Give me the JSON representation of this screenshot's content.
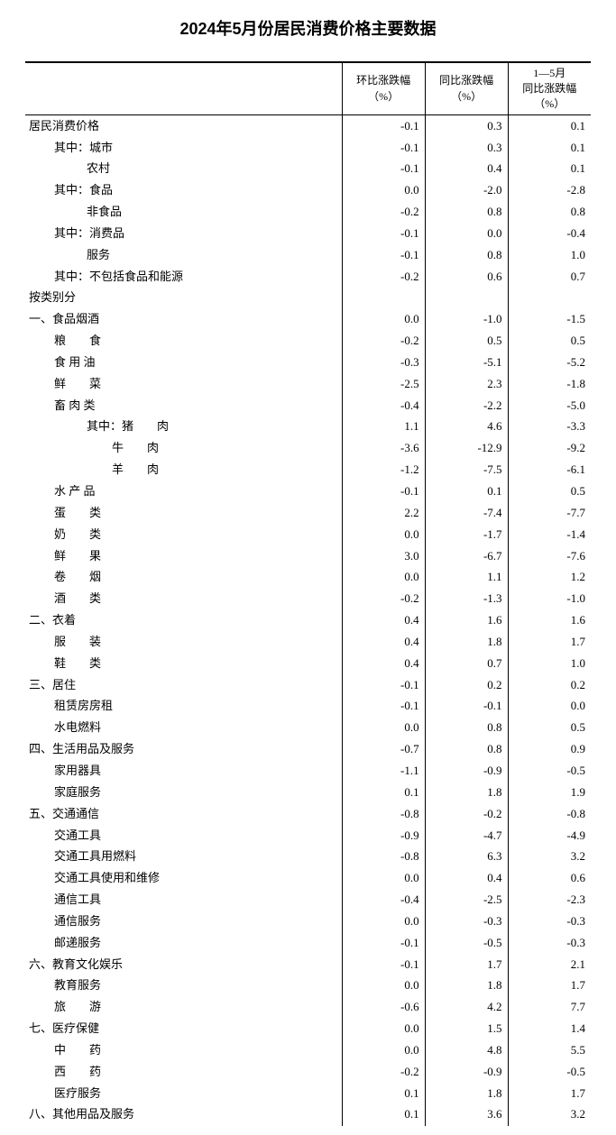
{
  "title": "2024年5月份居民消费价格主要数据",
  "columns": {
    "name": "",
    "c1a": "环比涨跌幅",
    "c1b": "（%）",
    "c2a": "同比涨跌幅",
    "c2b": "（%）",
    "c3a": "1—5月",
    "c3b": "同比涨跌幅",
    "c3c": "（%）"
  },
  "rows": [
    {
      "label": "居民消费价格",
      "indent": 0,
      "v1": "-0.1",
      "v2": "0.3",
      "v3": "0.1"
    },
    {
      "label": "其中：城市",
      "indent": 1,
      "v1": "-0.1",
      "v2": "0.3",
      "v3": "0.1"
    },
    {
      "label": "农村",
      "indent": 2,
      "v1": "-0.1",
      "v2": "0.4",
      "v3": "0.1"
    },
    {
      "label": "其中：食品",
      "indent": 1,
      "v1": "0.0",
      "v2": "-2.0",
      "v3": "-2.8"
    },
    {
      "label": "非食品",
      "indent": 2,
      "v1": "-0.2",
      "v2": "0.8",
      "v3": "0.8"
    },
    {
      "label": "其中：消费品",
      "indent": 1,
      "v1": "-0.1",
      "v2": "0.0",
      "v3": "-0.4"
    },
    {
      "label": "服务",
      "indent": 2,
      "v1": "-0.1",
      "v2": "0.8",
      "v3": "1.0"
    },
    {
      "label": "其中：不包括食品和能源",
      "indent": 1,
      "v1": "-0.2",
      "v2": "0.6",
      "v3": "0.7"
    },
    {
      "label": "按类别分",
      "indent": 0,
      "v1": "",
      "v2": "",
      "v3": ""
    },
    {
      "label": "一、食品烟酒",
      "indent": 0,
      "v1": "0.0",
      "v2": "-1.0",
      "v3": "-1.5"
    },
    {
      "label": "粮　　食",
      "indent": 1,
      "v1": "-0.2",
      "v2": "0.5",
      "v3": "0.5"
    },
    {
      "label": "食 用 油",
      "indent": 1,
      "v1": "-0.3",
      "v2": "-5.1",
      "v3": "-5.2"
    },
    {
      "label": "鲜　　菜",
      "indent": 1,
      "v1": "-2.5",
      "v2": "2.3",
      "v3": "-1.8"
    },
    {
      "label": "畜 肉 类",
      "indent": 1,
      "v1": "-0.4",
      "v2": "-2.2",
      "v3": "-5.0"
    },
    {
      "label": "其中：猪　　肉",
      "indent": 2,
      "v1": "1.1",
      "v2": "4.6",
      "v3": "-3.3"
    },
    {
      "label": "牛　　肉",
      "indent": 3,
      "v1": "-3.6",
      "v2": "-12.9",
      "v3": "-9.2"
    },
    {
      "label": "羊　　肉",
      "indent": 3,
      "v1": "-1.2",
      "v2": "-7.5",
      "v3": "-6.1"
    },
    {
      "label": "水 产 品",
      "indent": 1,
      "v1": "-0.1",
      "v2": "0.1",
      "v3": "0.5"
    },
    {
      "label": "蛋　　类",
      "indent": 1,
      "v1": "2.2",
      "v2": "-7.4",
      "v3": "-7.7"
    },
    {
      "label": "奶　　类",
      "indent": 1,
      "v1": "0.0",
      "v2": "-1.7",
      "v3": "-1.4"
    },
    {
      "label": "鲜　　果",
      "indent": 1,
      "v1": "3.0",
      "v2": "-6.7",
      "v3": "-7.6"
    },
    {
      "label": "卷　　烟",
      "indent": 1,
      "v1": "0.0",
      "v2": "1.1",
      "v3": "1.2"
    },
    {
      "label": "酒　　类",
      "indent": 1,
      "v1": "-0.2",
      "v2": "-1.3",
      "v3": "-1.0"
    },
    {
      "label": "二、衣着",
      "indent": 0,
      "v1": "0.4",
      "v2": "1.6",
      "v3": "1.6"
    },
    {
      "label": "服　　装",
      "indent": 1,
      "v1": "0.4",
      "v2": "1.8",
      "v3": "1.7"
    },
    {
      "label": "鞋　　类",
      "indent": 1,
      "v1": "0.4",
      "v2": "0.7",
      "v3": "1.0"
    },
    {
      "label": "三、居住",
      "indent": 0,
      "v1": "-0.1",
      "v2": "0.2",
      "v3": "0.2"
    },
    {
      "label": "租赁房房租",
      "indent": 1,
      "v1": "-0.1",
      "v2": "-0.1",
      "v3": "0.0"
    },
    {
      "label": "水电燃料",
      "indent": 1,
      "v1": "0.0",
      "v2": "0.8",
      "v3": "0.5"
    },
    {
      "label": "四、生活用品及服务",
      "indent": 0,
      "v1": "-0.7",
      "v2": "0.8",
      "v3": "0.9"
    },
    {
      "label": "家用器具",
      "indent": 1,
      "v1": "-1.1",
      "v2": "-0.9",
      "v3": "-0.5"
    },
    {
      "label": "家庭服务",
      "indent": 1,
      "v1": "0.1",
      "v2": "1.8",
      "v3": "1.9"
    },
    {
      "label": "五、交通通信",
      "indent": 0,
      "v1": "-0.8",
      "v2": "-0.2",
      "v3": "-0.8"
    },
    {
      "label": "交通工具",
      "indent": 1,
      "v1": "-0.9",
      "v2": "-4.7",
      "v3": "-4.9"
    },
    {
      "label": "交通工具用燃料",
      "indent": 1,
      "v1": "-0.8",
      "v2": "6.3",
      "v3": "3.2"
    },
    {
      "label": "交通工具使用和维修",
      "indent": 1,
      "v1": "0.0",
      "v2": "0.4",
      "v3": "0.6"
    },
    {
      "label": "通信工具",
      "indent": 1,
      "v1": "-0.4",
      "v2": "-2.5",
      "v3": "-2.3"
    },
    {
      "label": "通信服务",
      "indent": 1,
      "v1": "0.0",
      "v2": "-0.3",
      "v3": "-0.3"
    },
    {
      "label": "邮递服务",
      "indent": 1,
      "v1": "-0.1",
      "v2": "-0.5",
      "v3": "-0.3"
    },
    {
      "label": "六、教育文化娱乐",
      "indent": 0,
      "v1": "-0.1",
      "v2": "1.7",
      "v3": "2.1"
    },
    {
      "label": "教育服务",
      "indent": 1,
      "v1": "0.0",
      "v2": "1.8",
      "v3": "1.7"
    },
    {
      "label": "旅　　游",
      "indent": 1,
      "v1": "-0.6",
      "v2": "4.2",
      "v3": "7.7"
    },
    {
      "label": "七、医疗保健",
      "indent": 0,
      "v1": "0.0",
      "v2": "1.5",
      "v3": "1.4"
    },
    {
      "label": "中　　药",
      "indent": 1,
      "v1": "0.0",
      "v2": "4.8",
      "v3": "5.5"
    },
    {
      "label": "西　　药",
      "indent": 1,
      "v1": "-0.2",
      "v2": "-0.9",
      "v3": "-0.5"
    },
    {
      "label": "医疗服务",
      "indent": 1,
      "v1": "0.1",
      "v2": "1.8",
      "v3": "1.7"
    },
    {
      "label": "八、其他用品及服务",
      "indent": 0,
      "v1": "0.1",
      "v2": "3.6",
      "v3": "3.2"
    }
  ]
}
